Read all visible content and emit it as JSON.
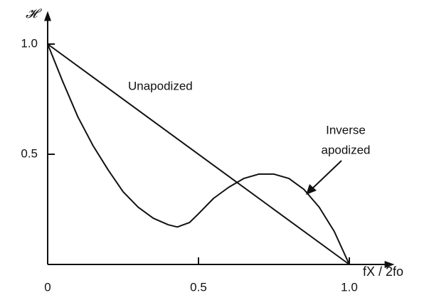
{
  "chart_data": {
    "type": "line",
    "y_label": "𝓗",
    "x_label": "fX / 2fo",
    "annotations": [
      "Unapodized",
      "Inverse",
      "apodized"
    ],
    "xlim": [
      0,
      1.15
    ],
    "ylim": [
      0,
      1.15
    ],
    "xticks": [
      0,
      0.5,
      {
        "value": 1,
        "label": "1.0"
      }
    ],
    "yticks": [
      0.5,
      {
        "value": 1,
        "label": "1.0"
      }
    ],
    "series": [
      {
        "name": "Unapodized",
        "color": "#111111",
        "x": [
          0,
          1
        ],
        "values": [
          1,
          0
        ]
      },
      {
        "name": "Inverse apodized",
        "color": "#111111",
        "x": [
          0,
          0.05,
          0.1,
          0.15,
          0.2,
          0.25,
          0.3,
          0.35,
          0.4,
          0.43,
          0.47,
          0.5,
          0.55,
          0.6,
          0.65,
          0.7,
          0.75,
          0.8,
          0.85,
          0.9,
          0.95,
          1.0
        ],
        "values": [
          1.0,
          0.83,
          0.67,
          0.54,
          0.43,
          0.33,
          0.26,
          0.21,
          0.18,
          0.17,
          0.19,
          0.23,
          0.3,
          0.35,
          0.39,
          0.41,
          0.41,
          0.39,
          0.34,
          0.26,
          0.15,
          0
        ]
      }
    ]
  }
}
